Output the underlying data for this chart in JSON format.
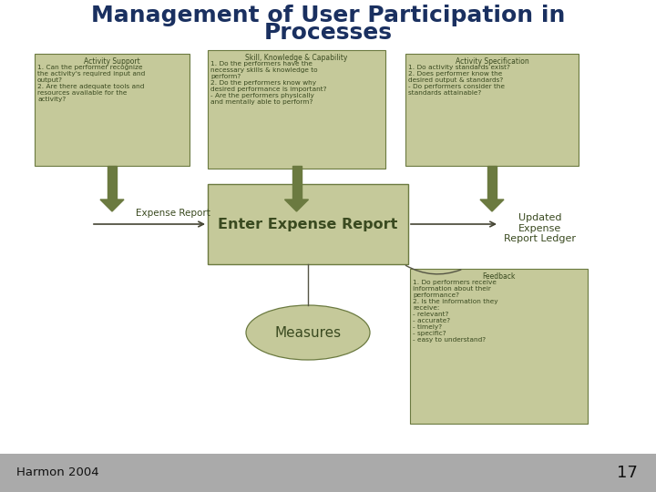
{
  "title_line1": "Management of User Participation in",
  "title_line2": "Processes",
  "title_color": "#1a3060",
  "title_fontsize": 18,
  "bg_color": "#ffffff",
  "footer_bg": "#aaaaaa",
  "box_fill": "#c5c99a",
  "box_edge": "#6b7a40",
  "arrow_color": "#6b7a40",
  "text_color": "#3a4a20",
  "footer_text_color": "#111111",
  "activity_support_title": "Activity Support",
  "activity_support_body": "1. Can the performer recognize\nthe activity's required input and\noutput?\n2. Are there adequate tools and\nresources available for the\nactivity?",
  "skill_title": "Skill, Knowledge & Capability",
  "skill_body": "1. Do the performers have the\nnecessary skills & knowledge to\nperform?\n2. Do the performers know why\ndesired performance is important?\n- Are the performers physically\nand mentally able to perform?",
  "activity_spec_title": "Activity Specification",
  "activity_spec_body": "1. Do activity standards exist?\n2. Does performer know the\ndesired output & standards?\n- Do performers consider the\nstandards attainable?",
  "main_box_text": "Enter Expense Report",
  "expense_report_label": "Expense Report",
  "updated_label": "Updated\nExpense\nReport Ledger",
  "measures_text": "Measures",
  "feedback_title": "Feedback",
  "feedback_body": "1. Do performers receive\ninformation about their\nperformance?\n2. Is the information they\nreceive:\n- relevant?\n- accurate?\n- timely?\n- specific?\n- easy to understand?",
  "slide_number": "17",
  "harmon_text": "Harmon 2004"
}
